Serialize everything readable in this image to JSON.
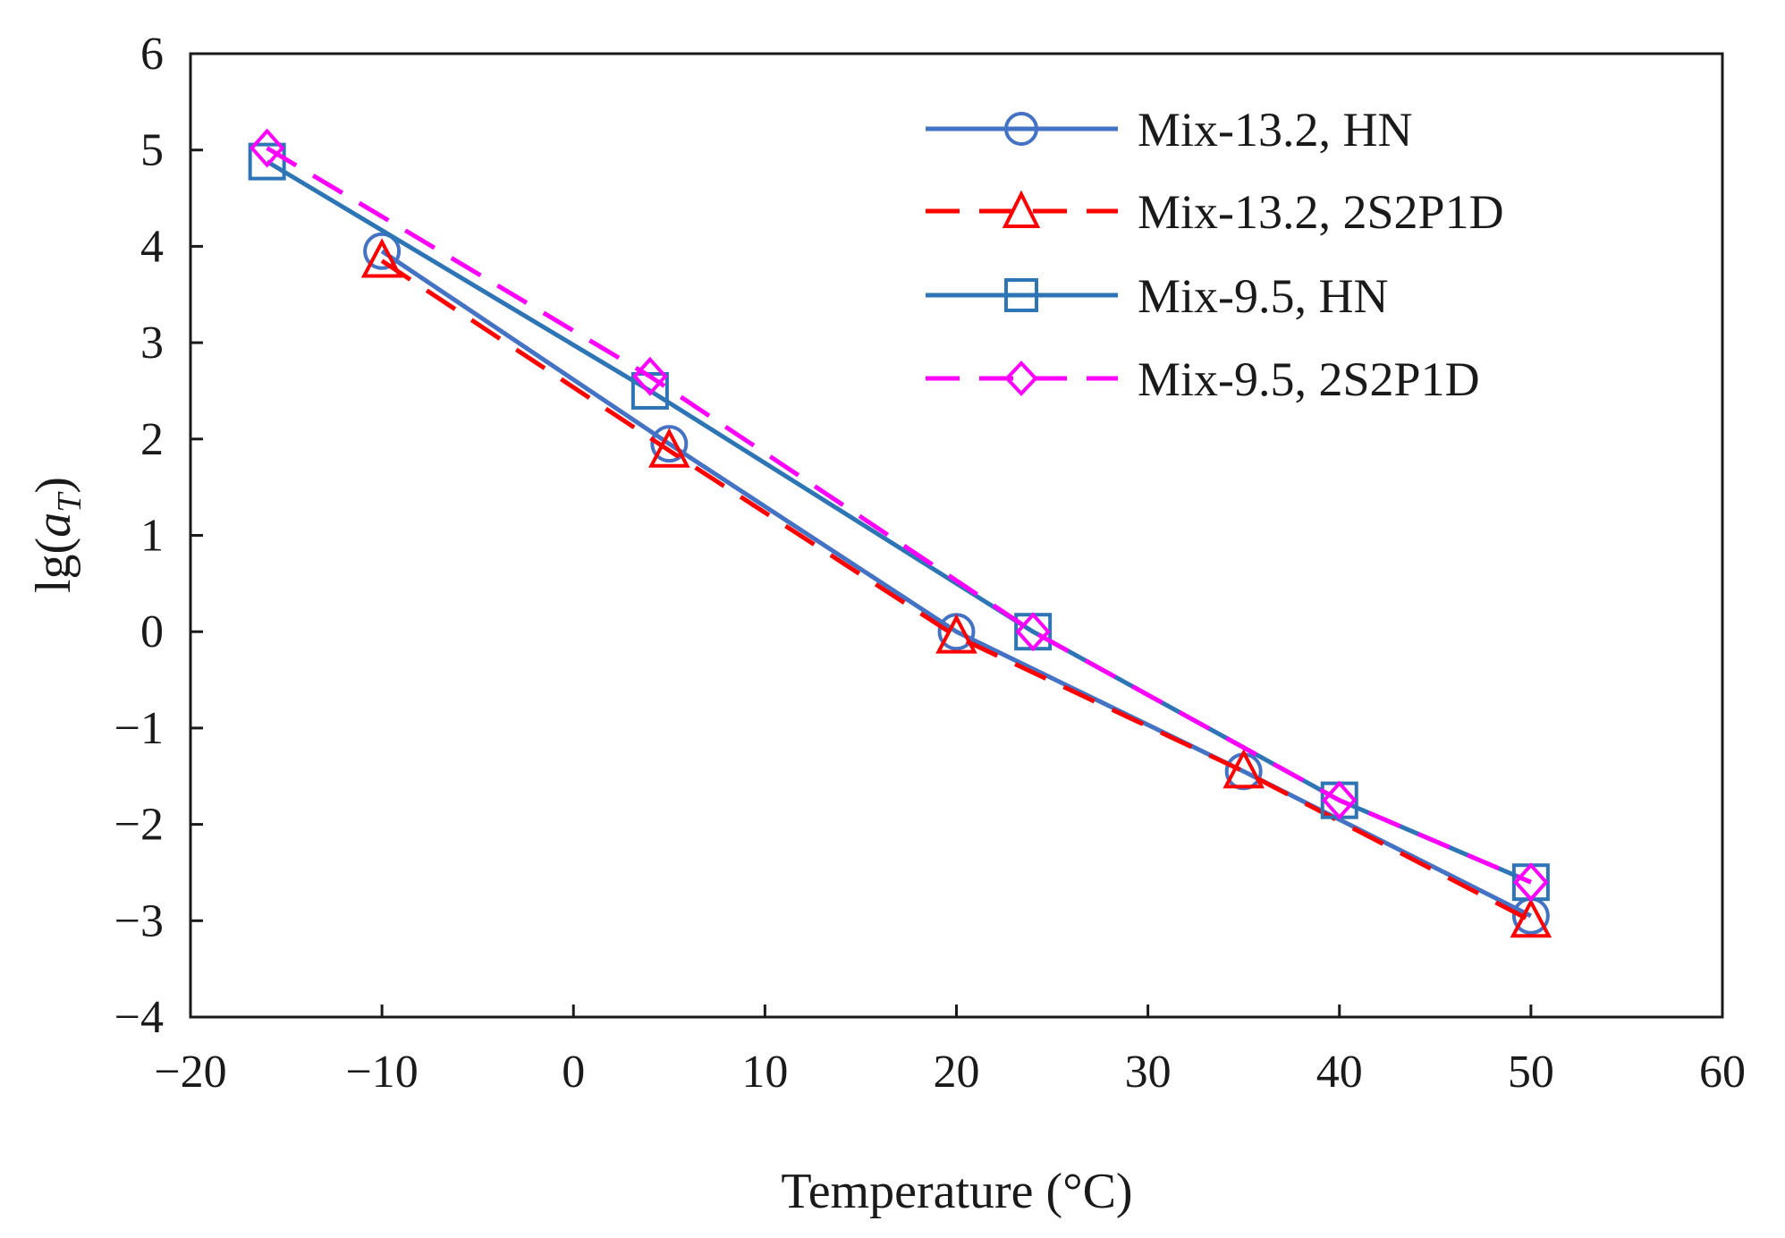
{
  "chart_data": {
    "type": "line",
    "title": "",
    "xlabel": "Temperature (°C)",
    "ylabel_prefix": "lg(",
    "ylabel_symbol": "a",
    "ylabel_subscript": "T",
    "ylabel_suffix": ")",
    "xlim": [
      -20,
      60
    ],
    "ylim": [
      -4,
      6
    ],
    "xticks": [
      -20,
      -10,
      0,
      10,
      20,
      30,
      40,
      50,
      60
    ],
    "yticks": [
      -4,
      -3,
      -2,
      -1,
      0,
      1,
      2,
      3,
      4,
      5,
      6
    ],
    "xtick_labels": [
      "−20",
      "−10",
      "0",
      "10",
      "20",
      "30",
      "40",
      "50",
      "60"
    ],
    "ytick_labels": [
      "−4",
      "−3",
      "−2",
      "−1",
      "0",
      "1",
      "2",
      "3",
      "4",
      "5",
      "6"
    ],
    "grid": false,
    "legend_position": "top-right",
    "series": [
      {
        "name": "Mix-13.2, HN",
        "color": "#4472c4",
        "dash": "solid",
        "marker": "circle",
        "x": [
          -10,
          5,
          20,
          35,
          50
        ],
        "y": [
          3.95,
          1.95,
          0,
          -1.45,
          -2.95
        ]
      },
      {
        "name": "Mix-13.2, 2S2P1D",
        "color": "#ff0000",
        "dash": "dashed",
        "marker": "triangle",
        "x": [
          -10,
          5,
          20,
          35,
          50
        ],
        "y": [
          3.85,
          1.88,
          -0.05,
          -1.45,
          -3.0
        ]
      },
      {
        "name": "Mix-9.5, HN",
        "color": "#2e75b6",
        "dash": "solid",
        "marker": "square",
        "x": [
          -16,
          4,
          24,
          40,
          50
        ],
        "y": [
          4.88,
          2.5,
          0,
          -1.75,
          -2.6
        ]
      },
      {
        "name": "Mix-9.5, 2S2P1D",
        "color": "#ff00ff",
        "dash": "dashed",
        "marker": "diamond",
        "x": [
          -16,
          4,
          24,
          40,
          50
        ],
        "y": [
          5.02,
          2.65,
          0,
          -1.75,
          -2.6
        ]
      }
    ]
  }
}
